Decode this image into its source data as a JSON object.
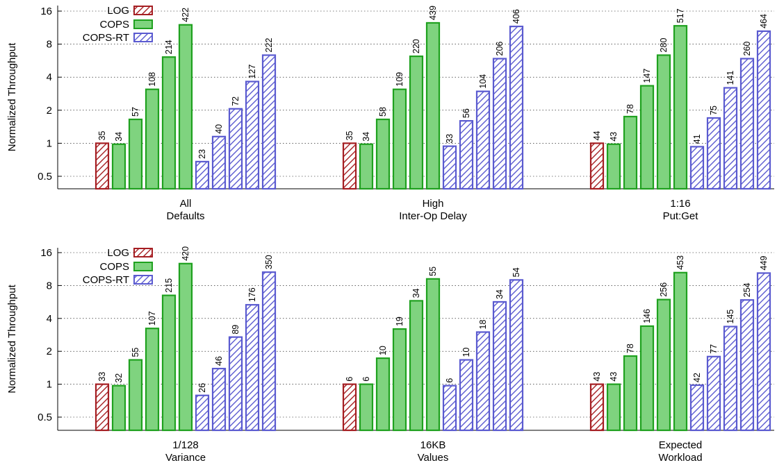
{
  "colors": {
    "LOG": "#a51e22",
    "COPS": "#1fa11f",
    "COPS_fill": "#7fd37f",
    "COPS-RT": "#5a5ad0"
  },
  "chart_data": {
    "type": "bar",
    "y_scale": "log2",
    "ylabel": "Normalized Throughput",
    "yticks": [
      "0.5",
      "1",
      "2",
      "4",
      "8",
      "16"
    ],
    "yticks_values": [
      0.5,
      1,
      2,
      4,
      8,
      16
    ],
    "ylim": [
      0.38,
      16.5
    ],
    "legend": [
      "LOG",
      "COPS",
      "COPS-RT"
    ],
    "legend_placement": "top-left",
    "grid": "horizontal-dotted",
    "panels": [
      {
        "groups": [
          {
            "label": [
              "All",
              "Defaults"
            ],
            "LOG": [
              {
                "value": 1.0,
                "label": "35"
              }
            ],
            "COPS": [
              {
                "value": 0.98,
                "label": "34"
              },
              {
                "value": 1.65,
                "label": "57"
              },
              {
                "value": 3.1,
                "label": "108"
              },
              {
                "value": 6.1,
                "label": "214"
              },
              {
                "value": 12.0,
                "label": "422"
              }
            ],
            "COPS-RT": [
              {
                "value": 0.68,
                "label": "23"
              },
              {
                "value": 1.15,
                "label": "40"
              },
              {
                "value": 2.06,
                "label": "72"
              },
              {
                "value": 3.65,
                "label": "127"
              },
              {
                "value": 6.35,
                "label": "222"
              }
            ]
          },
          {
            "label": [
              "High",
              "Inter-Op Delay"
            ],
            "LOG": [
              {
                "value": 1.0,
                "label": "35"
              }
            ],
            "COPS": [
              {
                "value": 0.98,
                "label": "34"
              },
              {
                "value": 1.65,
                "label": "58"
              },
              {
                "value": 3.1,
                "label": "109"
              },
              {
                "value": 6.2,
                "label": "220"
              },
              {
                "value": 12.5,
                "label": "439"
              }
            ],
            "COPS-RT": [
              {
                "value": 0.94,
                "label": "33"
              },
              {
                "value": 1.6,
                "label": "56"
              },
              {
                "value": 2.97,
                "label": "104"
              },
              {
                "value": 5.9,
                "label": "206"
              },
              {
                "value": 11.6,
                "label": "406"
              }
            ]
          },
          {
            "label": [
              "1:16",
              "Put:Get"
            ],
            "LOG": [
              {
                "value": 1.0,
                "label": "44"
              }
            ],
            "COPS": [
              {
                "value": 0.98,
                "label": "43"
              },
              {
                "value": 1.75,
                "label": "78"
              },
              {
                "value": 3.34,
                "label": "147"
              },
              {
                "value": 6.35,
                "label": "280"
              },
              {
                "value": 11.75,
                "label": "517"
              }
            ],
            "COPS-RT": [
              {
                "value": 0.93,
                "label": "41"
              },
              {
                "value": 1.7,
                "label": "75"
              },
              {
                "value": 3.2,
                "label": "141"
              },
              {
                "value": 5.9,
                "label": "260"
              },
              {
                "value": 10.5,
                "label": "464"
              }
            ]
          }
        ]
      },
      {
        "groups": [
          {
            "label": [
              "1/128",
              "Variance"
            ],
            "LOG": [
              {
                "value": 1.0,
                "label": "33"
              }
            ],
            "COPS": [
              {
                "value": 0.97,
                "label": "32"
              },
              {
                "value": 1.67,
                "label": "55"
              },
              {
                "value": 3.24,
                "label": "107"
              },
              {
                "value": 6.5,
                "label": "215"
              },
              {
                "value": 12.7,
                "label": "420"
              }
            ],
            "COPS-RT": [
              {
                "value": 0.79,
                "label": "26"
              },
              {
                "value": 1.39,
                "label": "46"
              },
              {
                "value": 2.7,
                "label": "89"
              },
              {
                "value": 5.33,
                "label": "176"
              },
              {
                "value": 10.6,
                "label": "350"
              }
            ]
          },
          {
            "label": [
              "16KB",
              "Values"
            ],
            "LOG": [
              {
                "value": 1.0,
                "label": "6"
              }
            ],
            "COPS": [
              {
                "value": 1.0,
                "label": "6"
              },
              {
                "value": 1.73,
                "label": "10"
              },
              {
                "value": 3.2,
                "label": "19"
              },
              {
                "value": 5.8,
                "label": "34"
              },
              {
                "value": 9.2,
                "label": "55"
              }
            ],
            "COPS-RT": [
              {
                "value": 0.97,
                "label": "6"
              },
              {
                "value": 1.67,
                "label": "10"
              },
              {
                "value": 3.0,
                "label": "18"
              },
              {
                "value": 5.67,
                "label": "34"
              },
              {
                "value": 9.0,
                "label": "54"
              }
            ]
          },
          {
            "label": [
              "Expected",
              "Workload"
            ],
            "LOG": [
              {
                "value": 1.0,
                "label": "43"
              }
            ],
            "COPS": [
              {
                "value": 1.0,
                "label": "43"
              },
              {
                "value": 1.81,
                "label": "78"
              },
              {
                "value": 3.4,
                "label": "146"
              },
              {
                "value": 5.95,
                "label": "256"
              },
              {
                "value": 10.5,
                "label": "453"
              }
            ],
            "COPS-RT": [
              {
                "value": 0.98,
                "label": "42"
              },
              {
                "value": 1.79,
                "label": "77"
              },
              {
                "value": 3.37,
                "label": "145"
              },
              {
                "value": 5.9,
                "label": "254"
              },
              {
                "value": 10.4,
                "label": "449"
              }
            ]
          }
        ]
      }
    ]
  }
}
